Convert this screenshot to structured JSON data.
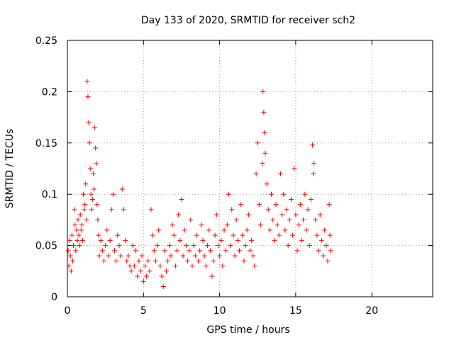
{
  "chart_data": {
    "type": "scatter",
    "title": "Day 133 of 2020, SRMTID for receiver sch2",
    "xlabel": "GPS time / hours",
    "ylabel": "SRMTID / TECUs",
    "xlim": [
      0,
      24
    ],
    "ylim": [
      0,
      0.25
    ],
    "xticks": [
      0,
      5,
      10,
      15,
      20
    ],
    "xtick_labels": [
      "0",
      "5",
      "10",
      "15",
      "20"
    ],
    "yticks": [
      0,
      0.05,
      0.1,
      0.15,
      0.2,
      0.25
    ],
    "ytick_labels": [
      "0",
      "0.05",
      "0.1",
      "0.15",
      "0.2",
      "0.25"
    ],
    "grid": true,
    "marker": "+",
    "color": "#ff0000",
    "series": [
      {
        "name": "SRMTID",
        "points": [
          [
            0.05,
            0.045
          ],
          [
            0.1,
            0.03
          ],
          [
            0.15,
            0.055
          ],
          [
            0.2,
            0.04
          ],
          [
            0.25,
            0.025
          ],
          [
            0.3,
            0.06
          ],
          [
            0.35,
            0.035
          ],
          [
            0.4,
            0.05
          ],
          [
            0.45,
            0.085
          ],
          [
            0.5,
            0.07
          ],
          [
            0.55,
            0.045
          ],
          [
            0.6,
            0.065
          ],
          [
            0.65,
            0.055
          ],
          [
            0.7,
            0.075
          ],
          [
            0.75,
            0.06
          ],
          [
            0.8,
            0.05
          ],
          [
            0.85,
            0.08
          ],
          [
            0.9,
            0.065
          ],
          [
            0.95,
            0.07
          ],
          [
            1.0,
            0.055
          ],
          [
            1.05,
            0.1
          ],
          [
            1.1,
            0.085
          ],
          [
            1.15,
            0.09
          ],
          [
            1.2,
            0.11
          ],
          [
            1.25,
            0.075
          ],
          [
            1.3,
            0.21
          ],
          [
            1.35,
            0.195
          ],
          [
            1.4,
            0.17
          ],
          [
            1.45,
            0.15
          ],
          [
            1.5,
            0.125
          ],
          [
            1.55,
            0.1
          ],
          [
            1.6,
            0.085
          ],
          [
            1.65,
            0.095
          ],
          [
            1.7,
            0.12
          ],
          [
            1.75,
            0.105
          ],
          [
            1.8,
            0.165
          ],
          [
            1.85,
            0.145
          ],
          [
            1.9,
            0.13
          ],
          [
            1.95,
            0.09
          ],
          [
            2.0,
            0.075
          ],
          [
            2.05,
            0.06
          ],
          [
            2.1,
            0.04
          ],
          [
            2.2,
            0.055
          ],
          [
            2.3,
            0.045
          ],
          [
            2.4,
            0.035
          ],
          [
            2.5,
            0.05
          ],
          [
            2.6,
            0.065
          ],
          [
            2.7,
            0.04
          ],
          [
            2.8,
            0.055
          ],
          [
            2.9,
            0.085
          ],
          [
            3.0,
            0.1
          ],
          [
            3.1,
            0.045
          ],
          [
            3.2,
            0.035
          ],
          [
            3.3,
            0.06
          ],
          [
            3.4,
            0.05
          ],
          [
            3.5,
            0.04
          ],
          [
            3.6,
            0.105
          ],
          [
            3.7,
            0.085
          ],
          [
            3.8,
            0.055
          ],
          [
            3.9,
            0.035
          ],
          [
            4.0,
            0.04
          ],
          [
            4.1,
            0.03
          ],
          [
            4.2,
            0.025
          ],
          [
            4.3,
            0.05
          ],
          [
            4.4,
            0.03
          ],
          [
            4.5,
            0.045
          ],
          [
            4.6,
            0.02
          ],
          [
            4.7,
            0.035
          ],
          [
            4.8,
            0.025
          ],
          [
            4.9,
            0.04
          ],
          [
            5.0,
            0.015
          ],
          [
            5.1,
            0.03
          ],
          [
            5.2,
            0.02
          ],
          [
            5.3,
            0.035
          ],
          [
            5.4,
            0.025
          ],
          [
            5.5,
            0.085
          ],
          [
            5.6,
            0.06
          ],
          [
            5.7,
            0.045
          ],
          [
            5.8,
            0.035
          ],
          [
            5.9,
            0.05
          ],
          [
            6.0,
            0.065
          ],
          [
            6.1,
            0.03
          ],
          [
            6.2,
            0.02
          ],
          [
            6.3,
            0.01
          ],
          [
            6.4,
            0.045
          ],
          [
            6.5,
            0.025
          ],
          [
            6.6,
            0.035
          ],
          [
            6.7,
            0.05
          ],
          [
            6.8,
            0.04
          ],
          [
            6.9,
            0.07
          ],
          [
            7.0,
            0.06
          ],
          [
            7.1,
            0.03
          ],
          [
            7.2,
            0.045
          ],
          [
            7.3,
            0.08
          ],
          [
            7.4,
            0.055
          ],
          [
            7.5,
            0.095
          ],
          [
            7.6,
            0.04
          ],
          [
            7.7,
            0.065
          ],
          [
            7.8,
            0.05
          ],
          [
            7.9,
            0.035
          ],
          [
            8.0,
            0.045
          ],
          [
            8.1,
            0.075
          ],
          [
            8.2,
            0.03
          ],
          [
            8.3,
            0.05
          ],
          [
            8.4,
            0.04
          ],
          [
            8.5,
            0.06
          ],
          [
            8.6,
            0.035
          ],
          [
            8.7,
            0.045
          ],
          [
            8.8,
            0.07
          ],
          [
            8.9,
            0.055
          ],
          [
            9.0,
            0.04
          ],
          [
            9.1,
            0.03
          ],
          [
            9.2,
            0.05
          ],
          [
            9.3,
            0.065
          ],
          [
            9.4,
            0.045
          ],
          [
            9.5,
            0.02
          ],
          [
            9.6,
            0.035
          ],
          [
            9.7,
            0.06
          ],
          [
            9.8,
            0.08
          ],
          [
            9.9,
            0.05
          ],
          [
            10.0,
            0.04
          ],
          [
            10.1,
            0.055
          ],
          [
            10.2,
            0.03
          ],
          [
            10.3,
            0.065
          ],
          [
            10.4,
            0.045
          ],
          [
            10.5,
            0.07
          ],
          [
            10.6,
            0.1
          ],
          [
            10.7,
            0.05
          ],
          [
            10.8,
            0.085
          ],
          [
            10.9,
            0.06
          ],
          [
            11.0,
            0.04
          ],
          [
            11.1,
            0.075
          ],
          [
            11.2,
            0.055
          ],
          [
            11.3,
            0.045
          ],
          [
            11.4,
            0.09
          ],
          [
            11.5,
            0.06
          ],
          [
            11.6,
            0.035
          ],
          [
            11.7,
            0.05
          ],
          [
            11.8,
            0.065
          ],
          [
            11.9,
            0.08
          ],
          [
            12.0,
            0.045
          ],
          [
            12.1,
            0.055
          ],
          [
            12.2,
            0.04
          ],
          [
            12.3,
            0.03
          ],
          [
            12.4,
            0.12
          ],
          [
            12.5,
            0.15
          ],
          [
            12.6,
            0.09
          ],
          [
            12.7,
            0.07
          ],
          [
            12.8,
            0.13
          ],
          [
            12.85,
            0.2
          ],
          [
            12.9,
            0.18
          ],
          [
            12.95,
            0.16
          ],
          [
            13.0,
            0.14
          ],
          [
            13.1,
            0.11
          ],
          [
            13.2,
            0.085
          ],
          [
            13.3,
            0.065
          ],
          [
            13.4,
            0.1
          ],
          [
            13.5,
            0.075
          ],
          [
            13.6,
            0.055
          ],
          [
            13.7,
            0.09
          ],
          [
            13.8,
            0.07
          ],
          [
            13.9,
            0.06
          ],
          [
            14.0,
            0.12
          ],
          [
            14.1,
            0.08
          ],
          [
            14.2,
            0.1
          ],
          [
            14.3,
            0.065
          ],
          [
            14.4,
            0.085
          ],
          [
            14.5,
            0.05
          ],
          [
            14.6,
            0.075
          ],
          [
            14.7,
            0.095
          ],
          [
            14.8,
            0.06
          ],
          [
            14.9,
            0.125
          ],
          [
            15.0,
            0.08
          ],
          [
            15.1,
            0.045
          ],
          [
            15.2,
            0.07
          ],
          [
            15.3,
            0.09
          ],
          [
            15.4,
            0.055
          ],
          [
            15.5,
            0.075
          ],
          [
            15.6,
            0.1
          ],
          [
            15.7,
            0.065
          ],
          [
            15.8,
            0.085
          ],
          [
            15.9,
            0.05
          ],
          [
            16.0,
            0.095
          ],
          [
            16.1,
            0.148
          ],
          [
            16.15,
            0.12
          ],
          [
            16.2,
            0.13
          ],
          [
            16.3,
            0.075
          ],
          [
            16.4,
            0.06
          ],
          [
            16.5,
            0.045
          ],
          [
            16.6,
            0.08
          ],
          [
            16.7,
            0.055
          ],
          [
            16.8,
            0.04
          ],
          [
            16.9,
            0.065
          ],
          [
            17.0,
            0.05
          ],
          [
            17.1,
            0.035
          ],
          [
            17.2,
            0.09
          ],
          [
            17.25,
            0.06
          ],
          [
            17.3,
            0.045
          ]
        ]
      }
    ]
  }
}
